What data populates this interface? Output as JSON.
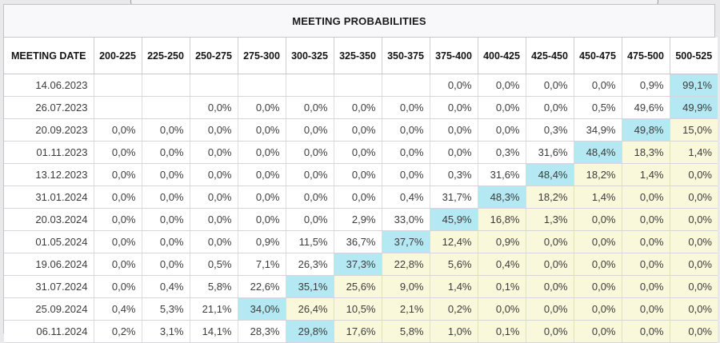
{
  "title": "MEETING PROBABILITIES",
  "colors": {
    "max_cell_highlight": "#b4e8f2",
    "after_max_highlight": "#f9f8da",
    "panel_background": "#ffffff",
    "title_background": "#f8f8fa",
    "page_background": "#e9e9ec"
  },
  "chart_data": {
    "type": "table",
    "title": "MEETING PROBABILITIES",
    "date_header": "MEETING DATE",
    "rate_headers": [
      "200-225",
      "225-250",
      "250-275",
      "275-300",
      "300-325",
      "325-350",
      "350-375",
      "375-400",
      "400-425",
      "425-450",
      "450-475",
      "475-500",
      "500-525"
    ],
    "rows": [
      {
        "date": "14.06.2023",
        "max_col": 12,
        "values": [
          "",
          "",
          "",
          "",
          "",
          "",
          "",
          "0,0%",
          "0,0%",
          "0,0%",
          "0,0%",
          "0,9%",
          "99,1%"
        ]
      },
      {
        "date": "26.07.2023",
        "max_col": 12,
        "values": [
          "",
          "",
          "0,0%",
          "0,0%",
          "0,0%",
          "0,0%",
          "0,0%",
          "0,0%",
          "0,0%",
          "0,0%",
          "0,5%",
          "49,6%",
          "49,9%"
        ]
      },
      {
        "date": "20.09.2023",
        "max_col": 11,
        "values": [
          "0,0%",
          "0,0%",
          "0,0%",
          "0,0%",
          "0,0%",
          "0,0%",
          "0,0%",
          "0,0%",
          "0,0%",
          "0,3%",
          "34,9%",
          "49,8%",
          "15,0%"
        ]
      },
      {
        "date": "01.11.2023",
        "max_col": 10,
        "values": [
          "0,0%",
          "0,0%",
          "0,0%",
          "0,0%",
          "0,0%",
          "0,0%",
          "0,0%",
          "0,0%",
          "0,3%",
          "31,6%",
          "48,4%",
          "18,3%",
          "1,4%"
        ]
      },
      {
        "date": "13.12.2023",
        "max_col": 9,
        "values": [
          "0,0%",
          "0,0%",
          "0,0%",
          "0,0%",
          "0,0%",
          "0,0%",
          "0,0%",
          "0,3%",
          "31,6%",
          "48,4%",
          "18,2%",
          "1,4%",
          "0,0%"
        ]
      },
      {
        "date": "31.01.2024",
        "max_col": 8,
        "values": [
          "0,0%",
          "0,0%",
          "0,0%",
          "0,0%",
          "0,0%",
          "0,0%",
          "0,4%",
          "31,7%",
          "48,3%",
          "18,2%",
          "1,4%",
          "0,0%",
          "0,0%"
        ]
      },
      {
        "date": "20.03.2024",
        "max_col": 7,
        "values": [
          "0,0%",
          "0,0%",
          "0,0%",
          "0,0%",
          "0,0%",
          "2,9%",
          "33,0%",
          "45,9%",
          "16,8%",
          "1,3%",
          "0,0%",
          "0,0%",
          "0,0%"
        ]
      },
      {
        "date": "01.05.2024",
        "max_col": 6,
        "values": [
          "0,0%",
          "0,0%",
          "0,0%",
          "0,9%",
          "11,5%",
          "36,7%",
          "37,7%",
          "12,4%",
          "0,9%",
          "0,0%",
          "0,0%",
          "0,0%",
          "0,0%"
        ]
      },
      {
        "date": "19.06.2024",
        "max_col": 5,
        "values": [
          "0,0%",
          "0,0%",
          "0,5%",
          "7,1%",
          "26,3%",
          "37,3%",
          "22,8%",
          "5,6%",
          "0,4%",
          "0,0%",
          "0,0%",
          "0,0%",
          "0,0%"
        ]
      },
      {
        "date": "31.07.2024",
        "max_col": 4,
        "values": [
          "0,0%",
          "0,4%",
          "5,8%",
          "22,6%",
          "35,1%",
          "25,6%",
          "9,0%",
          "1,4%",
          "0,1%",
          "0,0%",
          "0,0%",
          "0,0%",
          "0,0%"
        ]
      },
      {
        "date": "25.09.2024",
        "max_col": 3,
        "values": [
          "0,4%",
          "5,3%",
          "21,1%",
          "34,0%",
          "26,4%",
          "10,5%",
          "2,1%",
          "0,2%",
          "0,0%",
          "0,0%",
          "0,0%",
          "0,0%",
          "0,0%"
        ]
      },
      {
        "date": "06.11.2024",
        "max_col": 4,
        "values": [
          "0,2%",
          "3,1%",
          "14,1%",
          "28,3%",
          "29,8%",
          "17,6%",
          "5,8%",
          "1,0%",
          "0,1%",
          "0,0%",
          "0,0%",
          "0,0%",
          "0,0%"
        ]
      }
    ]
  }
}
